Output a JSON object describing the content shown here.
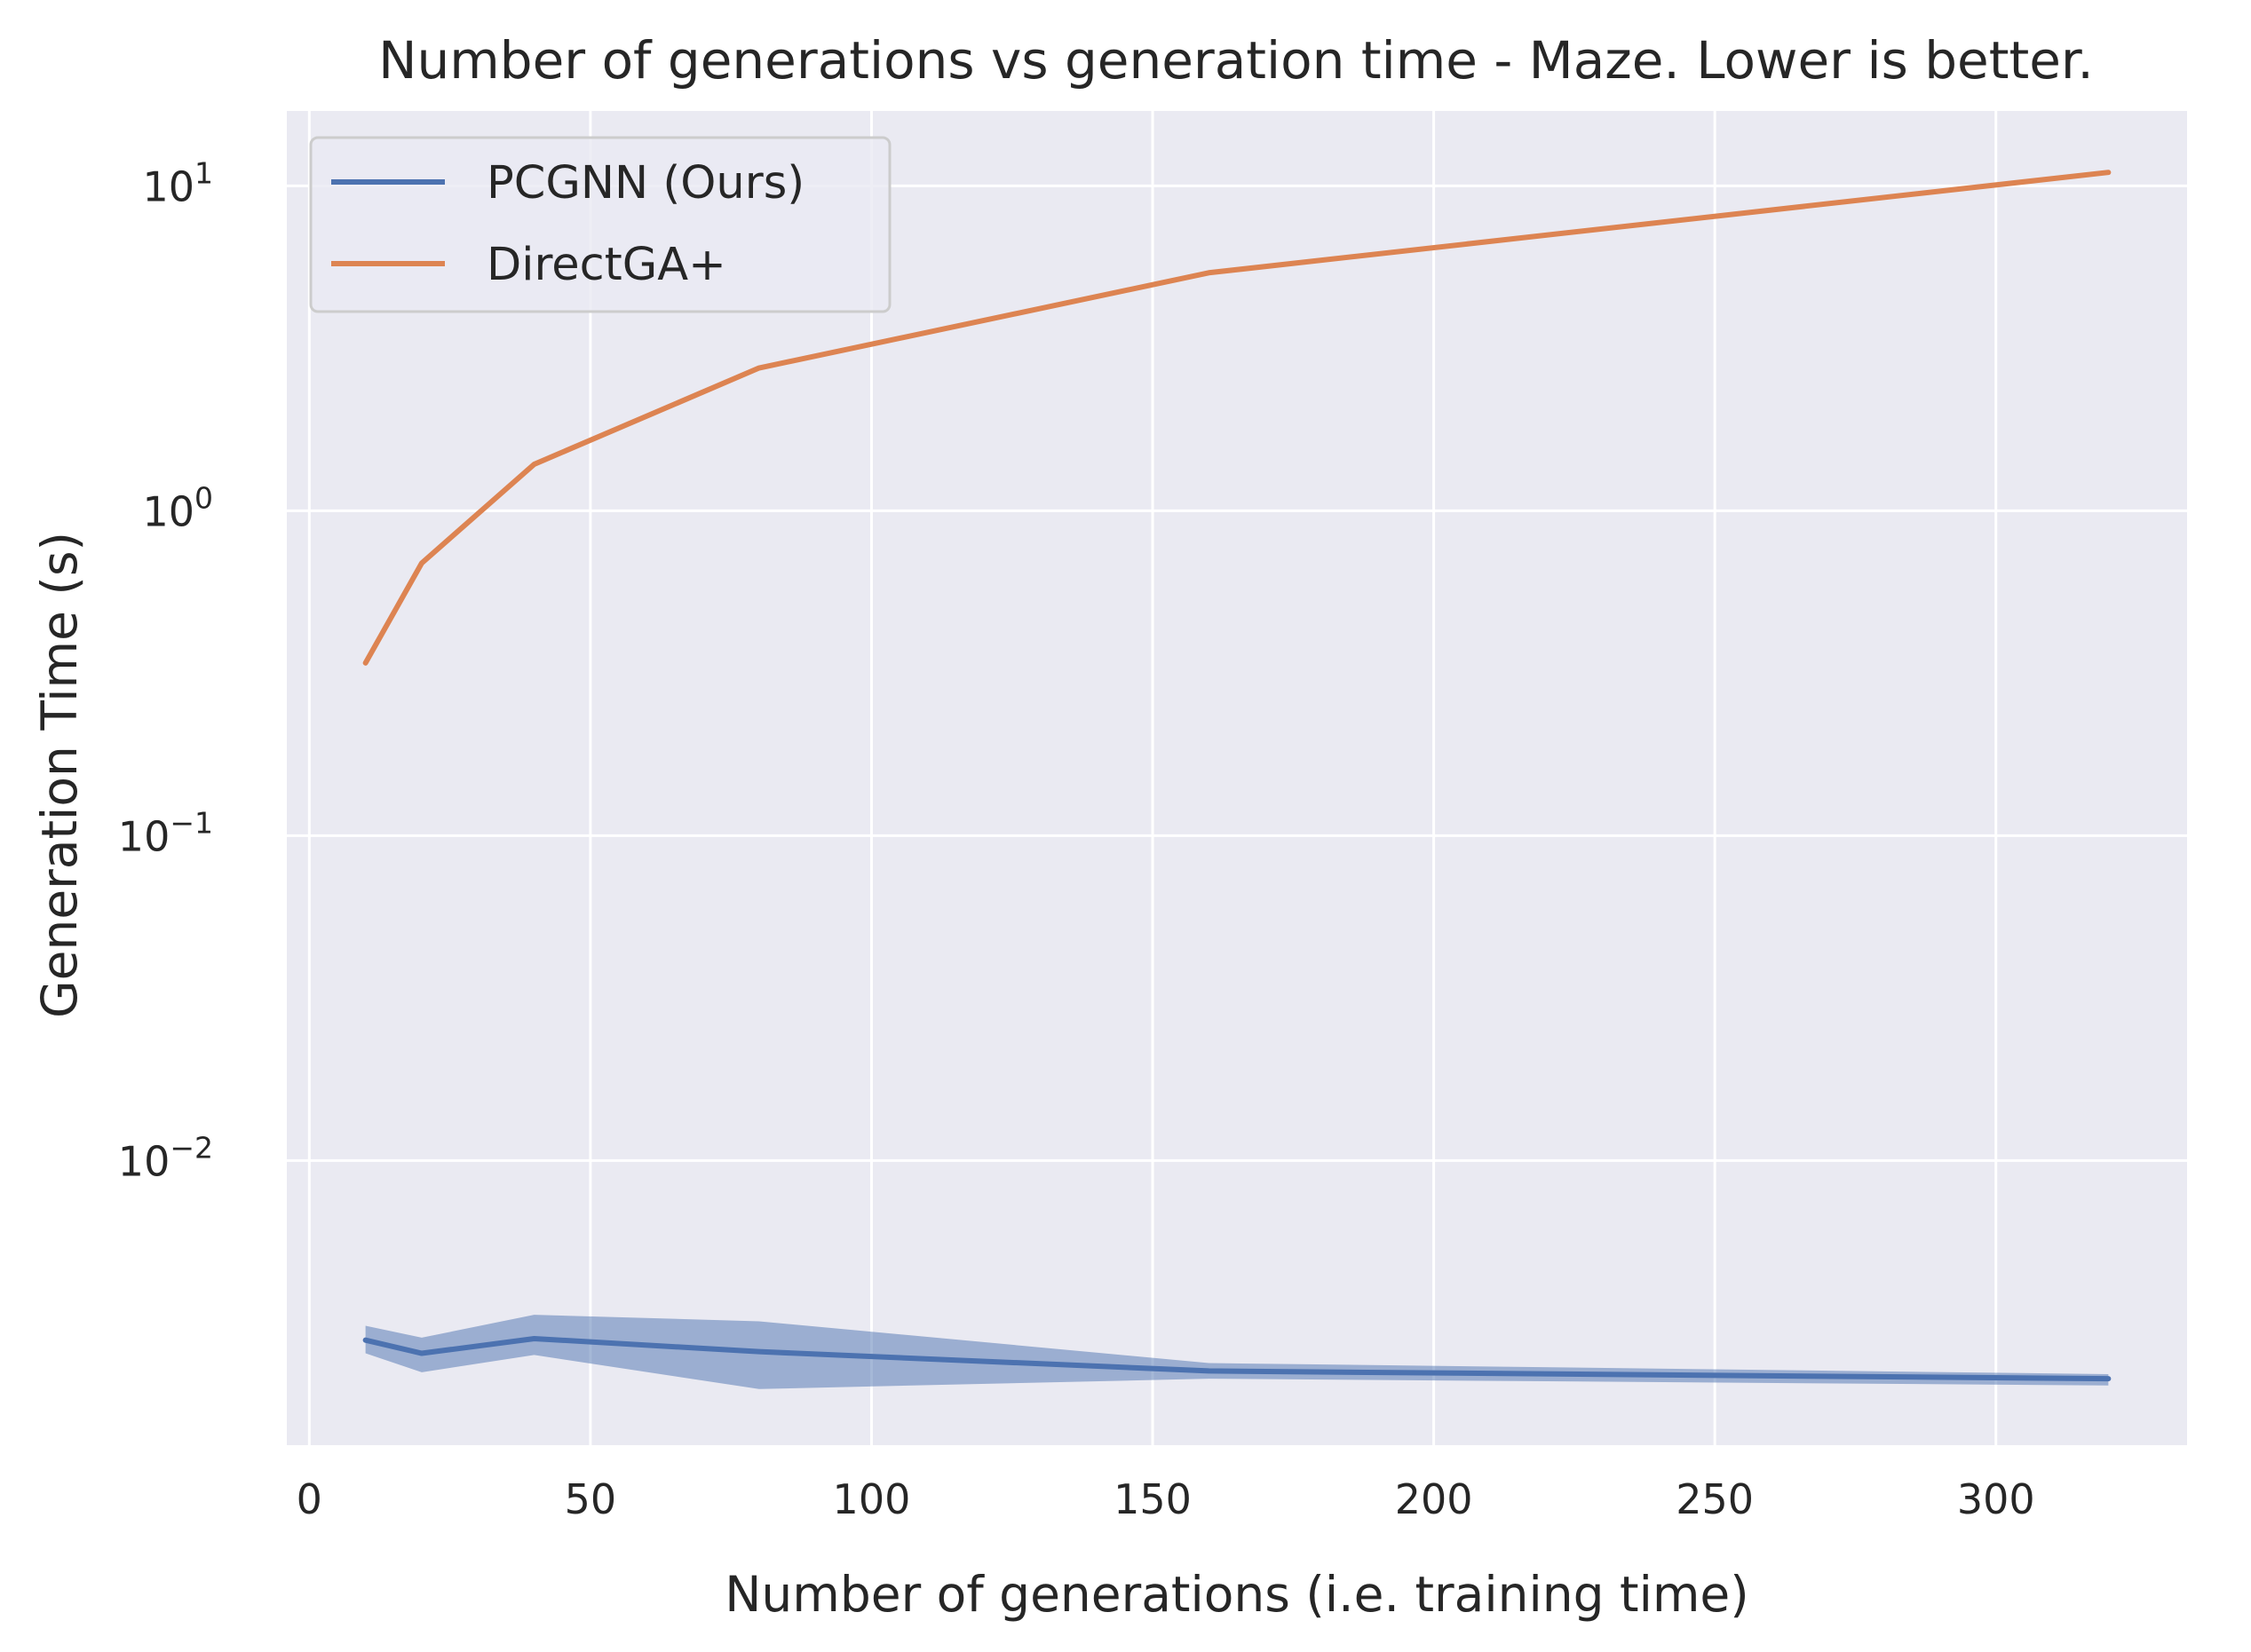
{
  "chart_data": {
    "type": "line",
    "title": "Number of generations vs generation time - Maze. Lower is better.",
    "xlabel": "Number of generations (i.e. training time)",
    "ylabel": "Generation Time (s)",
    "yscale": "log",
    "xlim": [
      -4,
      334
    ],
    "ylim": [
      0.00133,
      17
    ],
    "x_ticks": [
      0,
      50,
      100,
      150,
      200,
      250,
      300
    ],
    "y_ticks": [
      {
        "value": 0.01,
        "base": "10",
        "exp": "−2"
      },
      {
        "value": 0.1,
        "base": "10",
        "exp": "−1"
      },
      {
        "value": 1,
        "base": "10",
        "exp": "0"
      },
      {
        "value": 10,
        "base": "10",
        "exp": "1"
      }
    ],
    "grid": true,
    "legend_position": "top-left",
    "background": "#eaeaf2",
    "series": [
      {
        "name": "PCGNN (Ours)",
        "color": "#4c72b0",
        "x": [
          10,
          20,
          40,
          80,
          160,
          320
        ],
        "y": [
          0.0028,
          0.00255,
          0.00283,
          0.00258,
          0.00225,
          0.00213
        ],
        "band_low": [
          0.00255,
          0.00223,
          0.00252,
          0.00198,
          0.00213,
          0.00203
        ],
        "band_high": [
          0.0031,
          0.00285,
          0.00335,
          0.0032,
          0.00238,
          0.0022
        ]
      },
      {
        "name": "DirectGA+",
        "color": "#dd8452",
        "x": [
          10,
          20,
          40,
          80,
          160,
          320
        ],
        "y": [
          0.34,
          0.69,
          1.39,
          2.75,
          5.4,
          11.0
        ]
      }
    ]
  }
}
